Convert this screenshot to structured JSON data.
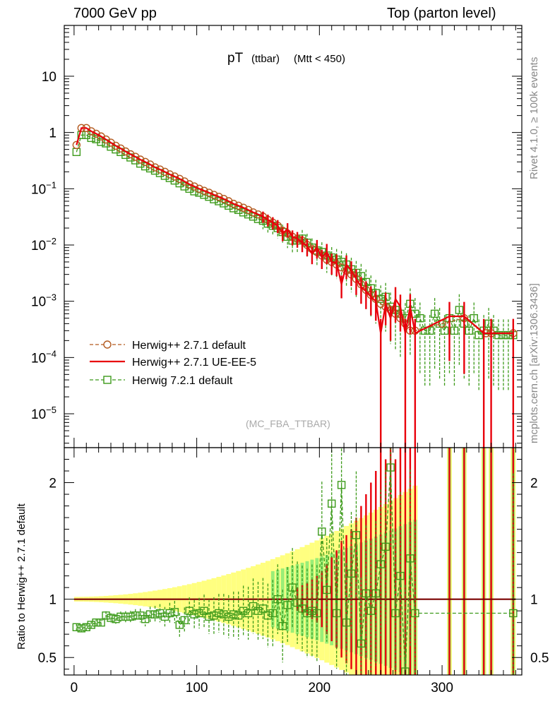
{
  "header": {
    "left": "7000 GeV pp",
    "right": "Top (parton level)"
  },
  "side_text": {
    "rivet": "Rivet 4.1.0, ≥ 100k events",
    "mcplots": "mcplots.cern.ch [arXiv:1306.3436]"
  },
  "colors": {
    "herwigpp_default": "#b35a1f",
    "ue_ee5": "#e8000b",
    "herwig721": "#3c9a1a",
    "band_yellow": "#ffff80",
    "band_green": "#99ee77",
    "ratio_line": "#7a0000",
    "watermark": "#aaaaaa"
  },
  "chart_data": [
    {
      "type": "line",
      "title": "pT",
      "title_sub": "(ttbar)",
      "title_cut": "(Mtt < 450)",
      "watermark": "(MC_FBA_TTBAR)",
      "y_scale": "log",
      "ylim": [
        2.5e-06,
        80
      ],
      "xlim": [
        -8,
        365
      ],
      "y_tick_labels": [
        "10",
        "1",
        "10−1",
        "10−2",
        "10−3",
        "10−4",
        "10−5"
      ],
      "legend_position": "lower-left",
      "series": [
        {
          "name": "Herwig++ 2.7.1 default",
          "style": "dashed-circle",
          "x": [
            2,
            6,
            10,
            14,
            18,
            22,
            26,
            30,
            34,
            38,
            42,
            46,
            50,
            54,
            58,
            62,
            66,
            70,
            74,
            78,
            82,
            86,
            90,
            94,
            98,
            102,
            106,
            110,
            114,
            118,
            122,
            126,
            130,
            134,
            138,
            142,
            146,
            150,
            154,
            158,
            162,
            166,
            170,
            174,
            178,
            182,
            186,
            190,
            194,
            198,
            202,
            206,
            210,
            214,
            218,
            222,
            226,
            230,
            234,
            238,
            242,
            246,
            250,
            254,
            258,
            262,
            266,
            270,
            274,
            278,
            300,
            318,
            336,
            340,
            358
          ],
          "values": [
            0.6,
            1.2,
            1.2,
            1.05,
            0.95,
            0.85,
            0.75,
            0.66,
            0.58,
            0.52,
            0.46,
            0.41,
            0.37,
            0.33,
            0.3,
            0.27,
            0.24,
            0.22,
            0.2,
            0.18,
            0.165,
            0.15,
            0.135,
            0.12,
            0.11,
            0.1,
            0.092,
            0.085,
            0.078,
            0.072,
            0.066,
            0.06,
            0.054,
            0.05,
            0.046,
            0.042,
            0.038,
            0.035,
            0.032,
            0.028,
            0.025,
            0.022,
            0.018,
            0.016,
            0.014,
            0.013,
            0.012,
            0.01,
            0.0085,
            0.0075,
            0.0065,
            0.0055,
            0.005,
            0.0045,
            0.004,
            0.0035,
            0.003,
            0.0025,
            0.002,
            0.0016,
            0.0013,
            0.0011,
            0.0009,
            0.0008,
            0.0007,
            0.0006,
            0.0005,
            0.0004,
            0.0003,
            0.0003,
            0.0004,
            0.0005,
            0.00027,
            0.00027,
            0.00027
          ]
        },
        {
          "name": "Herwig++ 2.7.1 UE-EE-5",
          "style": "solid",
          "x": [
            2,
            6,
            10,
            14,
            18,
            22,
            26,
            30,
            34,
            38,
            42,
            46,
            50,
            54,
            58,
            62,
            66,
            70,
            74,
            78,
            82,
            86,
            90,
            94,
            98,
            102,
            106,
            110,
            114,
            118,
            122,
            126,
            130,
            134,
            138,
            142,
            146,
            150,
            154,
            158,
            162,
            166,
            170,
            174,
            178,
            182,
            186,
            190,
            194,
            198,
            202,
            206,
            210,
            214,
            218,
            222,
            226,
            230,
            234,
            238,
            242,
            246,
            250,
            254,
            258,
            262,
            266,
            270,
            274,
            278,
            306,
            318,
            334,
            340,
            358
          ],
          "values": [
            0.6,
            1.2,
            1.2,
            1.05,
            0.95,
            0.85,
            0.75,
            0.66,
            0.58,
            0.52,
            0.46,
            0.41,
            0.37,
            0.33,
            0.3,
            0.27,
            0.24,
            0.22,
            0.2,
            0.18,
            0.165,
            0.15,
            0.135,
            0.12,
            0.11,
            0.1,
            0.092,
            0.085,
            0.078,
            0.072,
            0.066,
            0.06,
            0.054,
            0.05,
            0.046,
            0.042,
            0.038,
            0.035,
            0.032,
            0.028,
            0.025,
            0.022,
            0.016,
            0.019,
            0.014,
            0.013,
            0.011,
            0.0095,
            0.007,
            0.009,
            0.006,
            0.0075,
            0.005,
            0.0048,
            0.002,
            0.0045,
            0.0035,
            0.0025,
            0.0018,
            0.0015,
            0.0012,
            0.001,
            0.00027,
            0.0009,
            0.0005,
            0.0011,
            0.0008,
            0.00027,
            0.0008,
            0.00027,
            0.00054,
            0.00054,
            0.00027,
            0.00027,
            0.00027
          ]
        },
        {
          "name": "Herwig 7.2.1 default",
          "style": "dashed-square",
          "x": [
            2,
            6,
            10,
            14,
            18,
            22,
            26,
            30,
            34,
            38,
            42,
            46,
            50,
            54,
            58,
            62,
            66,
            70,
            74,
            78,
            82,
            86,
            90,
            94,
            98,
            102,
            106,
            110,
            114,
            118,
            122,
            126,
            130,
            134,
            138,
            142,
            146,
            150,
            154,
            158,
            162,
            166,
            170,
            174,
            178,
            182,
            186,
            190,
            194,
            198,
            202,
            206,
            210,
            214,
            218,
            222,
            226,
            230,
            234,
            238,
            242,
            246,
            250,
            254,
            258,
            262,
            266,
            270,
            274,
            278,
            282,
            286,
            290,
            294,
            298,
            302,
            306,
            310,
            314,
            318,
            322,
            326,
            330,
            334,
            338,
            342,
            346,
            350,
            354,
            358
          ],
          "values": [
            0.45,
            0.9,
            0.9,
            0.8,
            0.76,
            0.68,
            0.64,
            0.56,
            0.5,
            0.45,
            0.4,
            0.36,
            0.32,
            0.28,
            0.25,
            0.23,
            0.21,
            0.19,
            0.17,
            0.155,
            0.14,
            0.125,
            0.11,
            0.1,
            0.09,
            0.085,
            0.078,
            0.072,
            0.065,
            0.06,
            0.055,
            0.05,
            0.045,
            0.042,
            0.038,
            0.035,
            0.032,
            0.029,
            0.027,
            0.024,
            0.022,
            0.02,
            0.017,
            0.014,
            0.012,
            0.012,
            0.013,
            0.011,
            0.009,
            0.008,
            0.0075,
            0.0065,
            0.006,
            0.0055,
            0.005,
            0.0045,
            0.0037,
            0.0032,
            0.0028,
            0.0022,
            0.0017,
            0.0014,
            0.0011,
            0.0012,
            0.0008,
            0.0007,
            0.0006,
            0.0005,
            0.0009,
            0.0006,
            0.0005,
            0.0003,
            0.0003,
            0.0006,
            0.0004,
            0.0003,
            0.0005,
            0.0003,
            0.0007,
            0.0004,
            0.0003,
            0.0005,
            0.00025,
            0.0003,
            0.0004,
            0.0003,
            0.00025,
            0.00025,
            0.00025,
            0.00025
          ]
        }
      ]
    },
    {
      "type": "line",
      "ylabel": "Ratio to Herwig++ 2.7.1 default",
      "xlim": [
        -8,
        365
      ],
      "ylim": [
        0.35,
        2.3
      ],
      "x_tick_labels": [
        "0",
        "100",
        "200",
        "300"
      ],
      "y_tick_labels": [
        "0.5",
        "1",
        "2"
      ],
      "series": [
        {
          "name": "Herwig++ 2.7.1 UE-EE-5",
          "x": [
            0,
            360
          ],
          "values": [
            1.0,
            1.0
          ]
        },
        {
          "name": "Herwig 7.2.1 default",
          "x": [
            2,
            6,
            10,
            14,
            18,
            22,
            26,
            30,
            34,
            38,
            42,
            46,
            50,
            54,
            58,
            62,
            66,
            70,
            74,
            78,
            82,
            86,
            90,
            94,
            98,
            102,
            106,
            110,
            114,
            118,
            122,
            126,
            130,
            134,
            138,
            142,
            146,
            150,
            154,
            158,
            162,
            166,
            170,
            174,
            178,
            182,
            186,
            190,
            194,
            198,
            202,
            206,
            210,
            214,
            218,
            222,
            226,
            230,
            234,
            238,
            242,
            246,
            250,
            254,
            258,
            262,
            266,
            270,
            274,
            278,
            358
          ],
          "values": [
            0.76,
            0.75,
            0.76,
            0.78,
            0.8,
            0.8,
            0.86,
            0.84,
            0.83,
            0.85,
            0.85,
            0.85,
            0.86,
            0.86,
            0.83,
            0.87,
            0.87,
            0.88,
            0.85,
            0.88,
            0.89,
            0.78,
            0.82,
            0.9,
            0.87,
            0.88,
            0.9,
            0.85,
            0.86,
            0.88,
            0.87,
            0.85,
            0.87,
            0.86,
            0.9,
            0.88,
            0.94,
            0.9,
            0.92,
            0.86,
            0.88,
            1.0,
            0.77,
            0.95,
            1.1,
            0.97,
            0.92,
            0.88,
            0.9,
            0.88,
            1.58,
            1.08,
            1.82,
            0.88,
            1.98,
            0.8,
            1.22,
            1.55,
            0.62,
            1.05,
            0.9,
            1.05,
            1.3,
            1.45,
            2.13,
            0.88,
            1.2,
            0.38,
            1.35,
            0.88,
            0.88
          ]
        }
      ]
    }
  ]
}
